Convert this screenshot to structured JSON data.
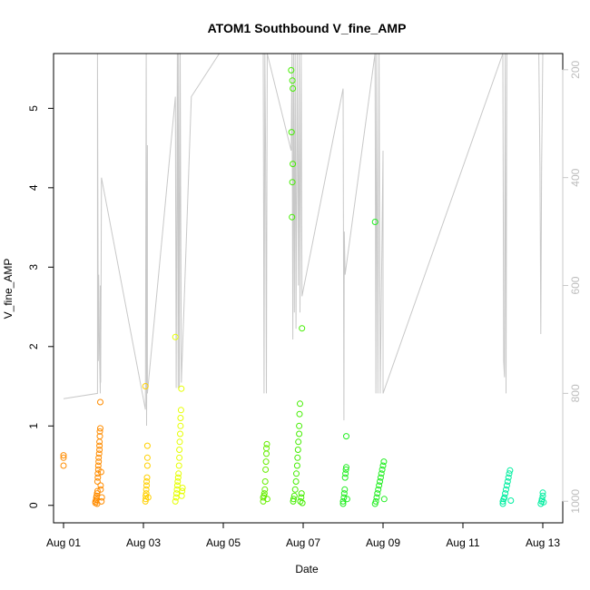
{
  "chart_data": {
    "type": "scatter",
    "title": "ATOM1 Southbound V_fine_AMP",
    "xlabel": "Date",
    "ylabel": "V_fine_AMP",
    "x_ticks": [
      "Aug 01",
      "Aug 03",
      "Aug 05",
      "Aug 07",
      "Aug 09",
      "Aug 11",
      "Aug 13"
    ],
    "x_tick_days": [
      1,
      3,
      5,
      7,
      9,
      11,
      13
    ],
    "xlim_days": [
      0.75,
      13.5
    ],
    "ylim": [
      -0.22,
      5.69
    ],
    "y_ticks": [
      0,
      1,
      2,
      3,
      4,
      5
    ],
    "right_axis": {
      "ticks": [
        200,
        400,
        600,
        800,
        1000
      ],
      "range_top": 170,
      "range_bottom": 1040,
      "color": "#c8c8c8"
    },
    "grid": false,
    "legend": "none",
    "series": [
      {
        "color": "#ff8c00",
        "points": [
          [
            1.0,
            0.63
          ],
          [
            1.0,
            0.6
          ],
          [
            1.0,
            0.5
          ],
          [
            1.8,
            0.03
          ],
          [
            1.8,
            0.05
          ],
          [
            1.82,
            0.07
          ],
          [
            1.82,
            0.1
          ],
          [
            1.83,
            0.12
          ],
          [
            1.84,
            0.15
          ],
          [
            1.84,
            0.02
          ],
          [
            1.85,
            0.18
          ],
          [
            1.85,
            0.3
          ],
          [
            1.86,
            0.35
          ],
          [
            1.86,
            0.4
          ],
          [
            1.87,
            0.45
          ],
          [
            1.87,
            0.5
          ],
          [
            1.88,
            0.55
          ],
          [
            1.88,
            0.6
          ],
          [
            1.89,
            0.65
          ],
          [
            1.9,
            0.7
          ],
          [
            1.9,
            0.75
          ],
          [
            1.9,
            0.8
          ],
          [
            1.91,
            0.87
          ],
          [
            1.91,
            0.93
          ],
          [
            1.92,
            0.97
          ],
          [
            1.92,
            1.3
          ],
          [
            1.93,
            0.2
          ],
          [
            1.93,
            0.25
          ],
          [
            1.94,
            0.42
          ],
          [
            1.95,
            0.05
          ],
          [
            1.96,
            0.1
          ]
        ]
      },
      {
        "color": "#ffd000",
        "points": [
          [
            3.05,
            0.05
          ],
          [
            3.05,
            1.5
          ],
          [
            3.06,
            0.08
          ],
          [
            3.06,
            0.12
          ],
          [
            3.07,
            0.15
          ],
          [
            3.07,
            0.2
          ],
          [
            3.08,
            0.25
          ],
          [
            3.08,
            0.3
          ],
          [
            3.09,
            0.35
          ],
          [
            3.1,
            0.5
          ],
          [
            3.1,
            0.6
          ],
          [
            3.1,
            0.75
          ],
          [
            3.12,
            0.1
          ]
        ]
      },
      {
        "color": "#e6ff00",
        "points": [
          [
            3.8,
            2.12
          ],
          [
            3.8,
            0.05
          ],
          [
            3.82,
            0.1
          ],
          [
            3.83,
            0.15
          ],
          [
            3.84,
            0.2
          ],
          [
            3.85,
            0.25
          ],
          [
            3.86,
            0.3
          ],
          [
            3.87,
            0.35
          ],
          [
            3.88,
            0.4
          ],
          [
            3.89,
            0.5
          ],
          [
            3.9,
            0.6
          ],
          [
            3.9,
            0.7
          ],
          [
            3.91,
            0.8
          ],
          [
            3.92,
            0.9
          ],
          [
            3.93,
            1.0
          ],
          [
            3.93,
            1.1
          ],
          [
            3.94,
            1.2
          ],
          [
            3.95,
            1.47
          ],
          [
            3.96,
            0.12
          ],
          [
            3.97,
            0.18
          ],
          [
            3.98,
            0.22
          ]
        ]
      },
      {
        "color": "#66ee00",
        "points": [
          [
            6.0,
            0.05
          ],
          [
            6.0,
            0.1
          ],
          [
            6.02,
            0.12
          ],
          [
            6.03,
            0.15
          ],
          [
            6.04,
            0.2
          ],
          [
            6.05,
            0.3
          ],
          [
            6.06,
            0.45
          ],
          [
            6.07,
            0.55
          ],
          [
            6.08,
            0.65
          ],
          [
            6.08,
            0.72
          ],
          [
            6.09,
            0.77
          ],
          [
            6.1,
            0.08
          ]
        ]
      },
      {
        "color": "#44ee00",
        "points": [
          [
            6.7,
            5.48
          ],
          [
            6.73,
            5.35
          ],
          [
            6.74,
            5.25
          ],
          [
            6.71,
            4.7
          ],
          [
            6.74,
            4.3
          ],
          [
            6.73,
            4.07
          ],
          [
            6.72,
            3.63
          ],
          [
            6.97,
            2.23
          ],
          [
            6.75,
            0.05
          ],
          [
            6.76,
            0.08
          ],
          [
            6.78,
            0.12
          ],
          [
            6.8,
            0.2
          ],
          [
            6.82,
            0.3
          ],
          [
            6.83,
            0.4
          ],
          [
            6.85,
            0.5
          ],
          [
            6.86,
            0.6
          ],
          [
            6.87,
            0.7
          ],
          [
            6.88,
            0.8
          ],
          [
            6.9,
            0.9
          ],
          [
            6.9,
            1.0
          ],
          [
            6.91,
            1.15
          ],
          [
            6.92,
            1.28
          ],
          [
            6.93,
            0.05
          ],
          [
            6.95,
            0.1
          ],
          [
            6.96,
            0.15
          ],
          [
            6.98,
            0.03
          ]
        ]
      },
      {
        "color": "#22ee22",
        "points": [
          [
            8.0,
            0.02
          ],
          [
            8.0,
            0.05
          ],
          [
            8.02,
            0.1
          ],
          [
            8.03,
            0.15
          ],
          [
            8.04,
            0.2
          ],
          [
            8.05,
            0.35
          ],
          [
            8.06,
            0.4
          ],
          [
            8.07,
            0.45
          ],
          [
            8.08,
            0.48
          ],
          [
            8.08,
            0.87
          ],
          [
            8.1,
            0.08
          ],
          [
            8.8,
            3.57
          ],
          [
            8.8,
            0.02
          ],
          [
            8.82,
            0.05
          ],
          [
            8.84,
            0.1
          ],
          [
            8.86,
            0.15
          ],
          [
            8.88,
            0.2
          ],
          [
            8.9,
            0.25
          ],
          [
            8.92,
            0.3
          ],
          [
            8.94,
            0.35
          ],
          [
            8.96,
            0.4
          ],
          [
            8.98,
            0.45
          ],
          [
            9.0,
            0.5
          ],
          [
            9.02,
            0.55
          ],
          [
            9.03,
            0.08
          ]
        ]
      },
      {
        "color": "#00eea0",
        "points": [
          [
            12.0,
            0.02
          ],
          [
            12.0,
            0.05
          ],
          [
            12.02,
            0.08
          ],
          [
            12.04,
            0.1
          ],
          [
            12.06,
            0.15
          ],
          [
            12.08,
            0.2
          ],
          [
            12.1,
            0.25
          ],
          [
            12.12,
            0.3
          ],
          [
            12.14,
            0.35
          ],
          [
            12.16,
            0.4
          ],
          [
            12.18,
            0.44
          ],
          [
            12.2,
            0.06
          ],
          [
            12.95,
            0.02
          ],
          [
            12.97,
            0.05
          ],
          [
            12.98,
            0.08
          ],
          [
            13.0,
            0.12
          ],
          [
            13.0,
            0.16
          ],
          [
            13.02,
            0.04
          ]
        ]
      }
    ],
    "overlay_line": {
      "color": "#c8c8c8",
      "points": [
        [
          1.0,
          810
        ],
        [
          1.85,
          800
        ],
        [
          1.85,
          170
        ],
        [
          1.87,
          740
        ],
        [
          1.88,
          580
        ],
        [
          1.9,
          720
        ],
        [
          1.92,
          800
        ],
        [
          1.92,
          600
        ],
        [
          1.93,
          780
        ],
        [
          1.95,
          400
        ],
        [
          3.05,
          830
        ],
        [
          3.07,
          170
        ],
        [
          3.08,
          860
        ],
        [
          3.1,
          340
        ],
        [
          3.1,
          800
        ],
        [
          3.8,
          250
        ],
        [
          3.82,
          790
        ],
        [
          3.85,
          170
        ],
        [
          3.87,
          790
        ],
        [
          3.88,
          170
        ],
        [
          3.9,
          790
        ],
        [
          3.92,
          170
        ],
        [
          3.95,
          780
        ],
        [
          4.2,
          250
        ],
        [
          4.9,
          170
        ],
        [
          6.0,
          170
        ],
        [
          6.02,
          800
        ],
        [
          6.04,
          170
        ],
        [
          6.06,
          350
        ],
        [
          6.08,
          800
        ],
        [
          6.1,
          170
        ],
        [
          6.7,
          350
        ],
        [
          6.72,
          170
        ],
        [
          6.74,
          700
        ],
        [
          6.76,
          170
        ],
        [
          6.78,
          650
        ],
        [
          6.8,
          170
        ],
        [
          6.82,
          680
        ],
        [
          6.85,
          170
        ],
        [
          6.88,
          600
        ],
        [
          6.9,
          170
        ],
        [
          6.92,
          650
        ],
        [
          6.95,
          170
        ],
        [
          6.97,
          620
        ],
        [
          8.0,
          235
        ],
        [
          8.02,
          850
        ],
        [
          8.03,
          500
        ],
        [
          8.05,
          580
        ],
        [
          8.8,
          170
        ],
        [
          8.82,
          800
        ],
        [
          8.84,
          170
        ],
        [
          8.87,
          800
        ],
        [
          8.9,
          170
        ],
        [
          8.93,
          800
        ],
        [
          9.0,
          350
        ],
        [
          9.0,
          800
        ],
        [
          12.0,
          170
        ],
        [
          12.02,
          740
        ],
        [
          12.04,
          770
        ],
        [
          12.06,
          170
        ],
        [
          12.08,
          800
        ],
        [
          12.1,
          170
        ],
        [
          12.9,
          170
        ],
        [
          12.93,
          380
        ],
        [
          12.95,
          690
        ],
        [
          12.97,
          380
        ],
        [
          13.0,
          170
        ]
      ]
    }
  }
}
